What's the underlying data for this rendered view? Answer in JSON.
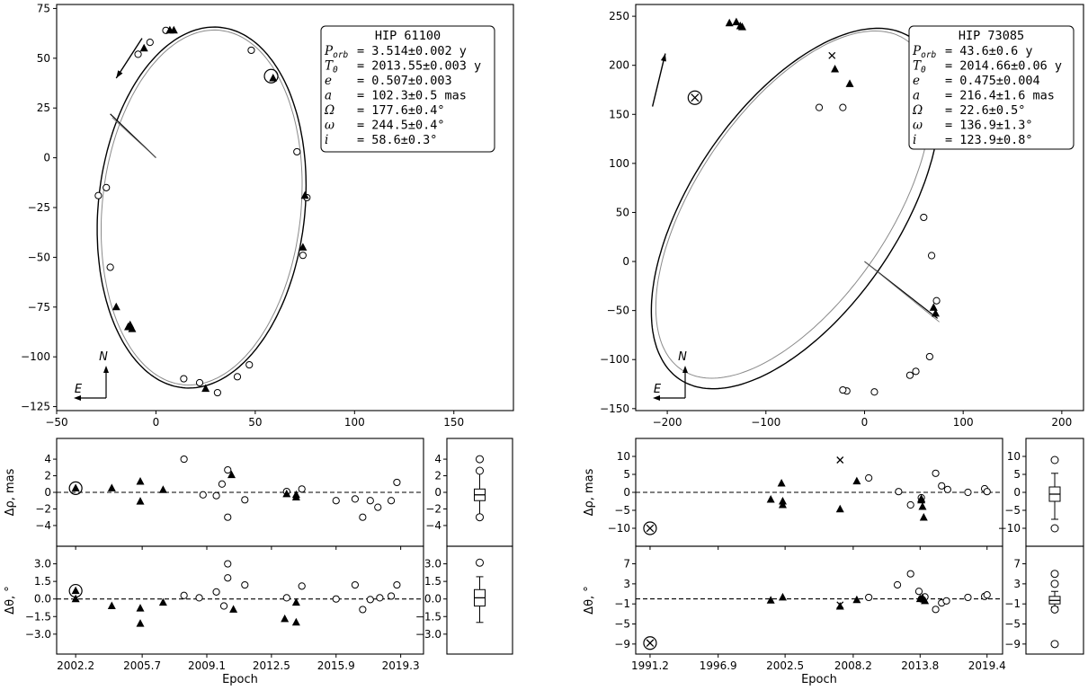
{
  "chart_data": [
    {
      "type": "scatter",
      "panel": "orbit",
      "star": "HIP 61100",
      "xlim": [
        -50,
        180
      ],
      "ylim": [
        -127,
        77
      ],
      "xticks": [
        -50,
        0,
        50,
        100,
        150
      ],
      "yticks": [
        -125,
        -100,
        -75,
        -50,
        -25,
        0,
        25,
        50,
        75
      ],
      "compass": {
        "east": "E",
        "north": "N"
      },
      "params": [
        {
          "sym": "P",
          "sub": "orb",
          "val": "= 3.514±0.002 y"
        },
        {
          "sym": "T",
          "sub": "0",
          "val": "= 2013.55±0.003 y"
        },
        {
          "sym": "e",
          "sub": "",
          "val": "= 0.507±0.003"
        },
        {
          "sym": "a",
          "sub": "",
          "val": "= 102.3±0.5 mas"
        },
        {
          "sym": "Ω",
          "sub": "",
          "val": "= 177.6±0.4°"
        },
        {
          "sym": "ω",
          "sub": "",
          "val": "= 244.5±0.4°"
        },
        {
          "sym": "i",
          "sub": "",
          "val": "= 58.6±0.3°"
        }
      ],
      "orbit_fit": {
        "center": [
          23,
          -25
        ],
        "semi_axes": [
          52,
          91
        ],
        "rotation_deg": -6
      },
      "orbit_alt": {
        "center": [
          23,
          -25
        ],
        "semi_axes": [
          50,
          89.5
        ],
        "rotation_deg": -6
      },
      "periastron_line": [
        [
          0,
          0
        ],
        [
          -23,
          22
        ]
      ],
      "circles": [
        [
          5,
          64
        ],
        [
          -3,
          58
        ],
        [
          -9,
          52
        ],
        [
          48,
          54
        ],
        [
          71,
          3
        ],
        [
          76,
          -20
        ],
        [
          74,
          -49
        ],
        [
          -29,
          -19
        ],
        [
          -25,
          -15
        ],
        [
          -23,
          -55
        ],
        [
          14,
          -111
        ],
        [
          22,
          -113
        ],
        [
          31,
          -118
        ],
        [
          41,
          -110
        ],
        [
          47,
          -104
        ]
      ],
      "triangles": [
        [
          7,
          64
        ],
        [
          9,
          64
        ],
        [
          -6,
          55
        ],
        [
          59,
          40
        ],
        [
          75,
          -19
        ],
        [
          74,
          -45
        ],
        [
          -20,
          -75
        ],
        [
          -14,
          -85
        ],
        [
          -13,
          -84
        ],
        [
          -12,
          -86
        ],
        [
          25,
          -116
        ]
      ],
      "special": {
        "x": 58,
        "y": 41,
        "kind": "circle"
      },
      "arrow": [
        [
          -7,
          60
        ],
        [
          -20,
          40
        ]
      ]
    },
    {
      "type": "scatter",
      "panel": "orbit",
      "star": "HIP 73085",
      "xlim": [
        -232,
        222
      ],
      "ylim": [
        -152,
        262
      ],
      "xticks": [
        -200,
        -100,
        0,
        100,
        200
      ],
      "yticks": [
        -150,
        -100,
        -50,
        0,
        50,
        100,
        150,
        200,
        250
      ],
      "compass": {
        "east": "E",
        "north": "N"
      },
      "params": [
        {
          "sym": "P",
          "sub": "orb",
          "val": "= 43.6±0.6 y"
        },
        {
          "sym": "T",
          "sub": "0",
          "val": "= 2014.66±0.06 y"
        },
        {
          "sym": "e",
          "sub": "",
          "val": "= 0.475±0.004"
        },
        {
          "sym": "a",
          "sub": "",
          "val": "= 216.4±1.6 mas"
        },
        {
          "sym": "Ω",
          "sub": "",
          "val": "= 22.6±0.5°"
        },
        {
          "sym": "ω",
          "sub": "",
          "val": "= 136.9±1.3°"
        },
        {
          "sym": "i",
          "sub": "",
          "val": "= 123.9±0.8°"
        }
      ],
      "orbit_fit": {
        "center": [
          -70,
          54
        ],
        "semi_axes": [
          105,
          210
        ],
        "rotation_deg": -34
      },
      "orbit_alt": {
        "center": [
          -72,
          58
        ],
        "semi_axes": [
          98,
          203
        ],
        "rotation_deg": -34
      },
      "periastron_line": [
        [
          0,
          0
        ],
        [
          74,
          -58
        ]
      ],
      "circles": [
        [
          -46,
          157
        ],
        [
          -22,
          157
        ],
        [
          60,
          45
        ],
        [
          68,
          6
        ],
        [
          73,
          -40
        ],
        [
          66,
          -97
        ],
        [
          52,
          -112
        ],
        [
          46,
          -116
        ],
        [
          -18,
          -132
        ],
        [
          -22,
          -131
        ],
        [
          10,
          -133
        ]
      ],
      "triangles": [
        [
          -137,
          243
        ],
        [
          -130,
          244
        ],
        [
          -126,
          240
        ],
        [
          -124,
          239
        ],
        [
          -30,
          196
        ],
        [
          -15,
          181
        ],
        [
          70,
          -47
        ],
        [
          72,
          -53
        ]
      ],
      "crosses": [
        [
          -33,
          210
        ]
      ],
      "special": {
        "x": -172,
        "y": 167,
        "kind": "circle-x"
      },
      "arrow": [
        [
          -215,
          158
        ],
        [
          -202,
          212
        ]
      ]
    },
    {
      "type": "scatter",
      "panel": "residuals",
      "star": "HIP 61100",
      "xlabel": "Epoch",
      "xlim": [
        2001.2,
        2020.5
      ],
      "xticks": [
        "2002.2",
        "2005.7",
        "2009.1",
        "2012.5",
        "2015.9",
        "2019.3"
      ],
      "rho": {
        "ylabel": "Δρ, mas",
        "ylim": [
          -6.5,
          6.5
        ],
        "yticks": [
          "4",
          "2",
          "0",
          "−2",
          "−4"
        ],
        "ytick_values": [
          4,
          2,
          0,
          -2,
          -4
        ],
        "circles": [
          [
            2007.9,
            4
          ],
          [
            2008.9,
            -0.3
          ],
          [
            2009.6,
            -0.4
          ],
          [
            2009.9,
            1
          ],
          [
            2010.2,
            2.7
          ],
          [
            2010.2,
            -3
          ],
          [
            2011.1,
            -0.9
          ],
          [
            2013.3,
            0.1
          ],
          [
            2014.1,
            0.4
          ],
          [
            2015.9,
            -1
          ],
          [
            2016.9,
            -0.8
          ],
          [
            2017.3,
            -3
          ],
          [
            2017.7,
            -1
          ],
          [
            2018.1,
            -1.8
          ],
          [
            2018.8,
            -1
          ],
          [
            2019.1,
            1.2
          ]
        ],
        "triangles": [
          [
            2002.2,
            0.5
          ],
          [
            2004.1,
            0.5
          ],
          [
            2005.6,
            1.3
          ],
          [
            2005.6,
            -1.1
          ],
          [
            2006.8,
            0.3
          ],
          [
            2010.4,
            2.1
          ],
          [
            2013.3,
            -0.2
          ],
          [
            2013.8,
            -0.3
          ],
          [
            2013.8,
            -0.6
          ]
        ],
        "special": [
          2002.2,
          0.5
        ],
        "box": {
          "median": -0.3,
          "q1": -1.0,
          "q3": 0.4,
          "whislo": -2.8,
          "whishi": 2.4,
          "fliers": [
            4,
            2.6,
            -3
          ]
        }
      },
      "theta": {
        "ylabel": "Δθ, °",
        "ylim": [
          -4.7,
          4.5
        ],
        "yticks": [
          "3.0",
          "1.5",
          "0.0",
          "−1.5",
          "−3.0"
        ],
        "ytick_values": [
          3,
          1.5,
          0,
          -1.5,
          -3
        ],
        "circles": [
          [
            2007.9,
            0.3
          ],
          [
            2008.7,
            0.1
          ],
          [
            2009.6,
            0.6
          ],
          [
            2010.0,
            -0.6
          ],
          [
            2010.2,
            1.8
          ],
          [
            2010.2,
            3.0
          ],
          [
            2011.1,
            1.2
          ],
          [
            2013.3,
            0.1
          ],
          [
            2014.1,
            1.1
          ],
          [
            2015.9,
            0
          ],
          [
            2016.9,
            1.2
          ],
          [
            2017.3,
            -0.9
          ],
          [
            2017.7,
            -0.05
          ],
          [
            2018.2,
            0.1
          ],
          [
            2018.8,
            0.25
          ],
          [
            2019.1,
            1.2
          ]
        ],
        "triangles": [
          [
            2002.2,
            0.7
          ],
          [
            2002.2,
            0
          ],
          [
            2004.1,
            -0.6
          ],
          [
            2005.6,
            -0.8
          ],
          [
            2005.6,
            -2.1
          ],
          [
            2006.8,
            -0.3
          ],
          [
            2010.5,
            -0.9
          ],
          [
            2013.2,
            -1.7
          ],
          [
            2013.8,
            -2.0
          ],
          [
            2013.8,
            -0.3
          ]
        ],
        "special": [
          2002.2,
          0.7
        ],
        "box": {
          "median": 0.1,
          "q1": -0.6,
          "q3": 0.8,
          "whislo": -2.0,
          "whishi": 1.9,
          "fliers": [
            3.1
          ]
        }
      }
    },
    {
      "type": "scatter",
      "panel": "residuals",
      "star": "HIP 73085",
      "xlabel": "Epoch",
      "xlim": [
        1990.0,
        2020.7
      ],
      "xticks": [
        "1991.2",
        "1996.9",
        "2002.5",
        "2008.2",
        "2013.8",
        "2019.4"
      ],
      "rho": {
        "ylabel": "Δρ, mas",
        "ylim": [
          -15,
          15
        ],
        "yticks": [
          "10",
          "5",
          "0",
          "−5",
          "−10"
        ],
        "ytick_values": [
          10,
          5,
          0,
          -5,
          -10
        ],
        "circles": [
          [
            2009.5,
            4
          ],
          [
            2012.0,
            0.2
          ],
          [
            2013.0,
            -3.5
          ],
          [
            2013.9,
            -1.5
          ],
          [
            2015.1,
            5.3
          ],
          [
            2015.6,
            1.8
          ],
          [
            2016.1,
            0.8
          ],
          [
            2017.8,
            0
          ],
          [
            2019.2,
            1
          ],
          [
            2019.4,
            0.2
          ]
        ],
        "triangles": [
          [
            2001.3,
            -2
          ],
          [
            2002.2,
            2.5
          ],
          [
            2002.3,
            -2.5
          ],
          [
            2002.3,
            -3.5
          ],
          [
            2007.1,
            -4.7
          ],
          [
            2008.5,
            3.1
          ],
          [
            2013.9,
            -2.2
          ],
          [
            2014.0,
            -4
          ],
          [
            2014.1,
            -7
          ],
          [
            2013.9,
            -1.8
          ]
        ],
        "crosses": [
          [
            2007.1,
            9
          ]
        ],
        "special": [
          1991.2,
          -10
        ],
        "box": {
          "median": -0.5,
          "q1": -2.5,
          "q3": 1.5,
          "whislo": -7.5,
          "whishi": 5.3,
          "fliers": [
            9,
            -10
          ]
        }
      },
      "theta": {
        "ylabel": "Δθ, °",
        "ylim": [
          -11,
          10.5
        ],
        "yticks": [
          "7",
          "3",
          "−1",
          "−5",
          "−9"
        ],
        "ytick_values": [
          7,
          3,
          -1,
          -5,
          -9
        ],
        "circles": [
          [
            2009.5,
            0.3
          ],
          [
            2011.9,
            2.8
          ],
          [
            2013.0,
            5
          ],
          [
            2013.7,
            1.5
          ],
          [
            2013.9,
            0
          ],
          [
            2014.2,
            0.4
          ],
          [
            2015.1,
            -2.1
          ],
          [
            2015.6,
            -0.8
          ],
          [
            2016.0,
            -0.4
          ],
          [
            2017.8,
            0.3
          ],
          [
            2019.2,
            0.5
          ],
          [
            2019.4,
            0.8
          ]
        ],
        "triangles": [
          [
            2001.3,
            -0.3
          ],
          [
            2002.3,
            0.3
          ],
          [
            2007.1,
            -1.5
          ],
          [
            2008.5,
            -0.2
          ],
          [
            2013.8,
            0
          ],
          [
            2014.0,
            0.2
          ],
          [
            2014.2,
            -0.4
          ]
        ],
        "crosses": [
          [
            2007.1,
            -1.2
          ]
        ],
        "special": [
          1991.2,
          -8.8
        ],
        "box": {
          "median": -0.3,
          "q1": -1,
          "q3": 0.5,
          "whislo": -1.6,
          "whishi": 1.5,
          "fliers": [
            5,
            3,
            -2.1,
            -9
          ]
        }
      }
    }
  ]
}
